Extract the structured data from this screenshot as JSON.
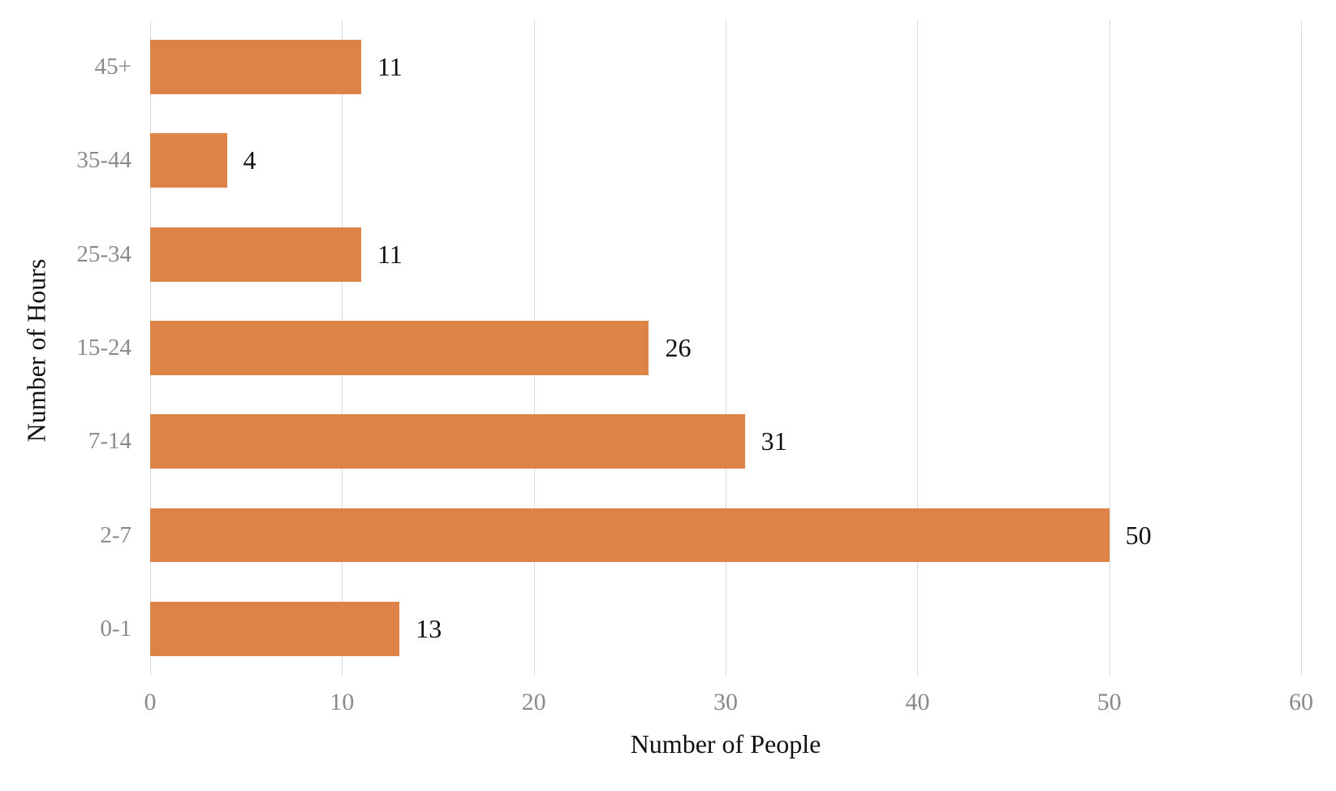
{
  "chart_data": {
    "type": "bar",
    "orientation": "horizontal",
    "categories": [
      "45+",
      "35-44",
      "25-34",
      "15-24",
      "7-14",
      "2-7",
      "0-1"
    ],
    "values": [
      11,
      4,
      11,
      26,
      31,
      50,
      13
    ],
    "data_labels": [
      "11",
      "4",
      "11",
      "26",
      "31",
      "50",
      "13"
    ],
    "xlabel": "Number of People",
    "ylabel": "Number of Hours",
    "xlim": [
      0,
      60
    ],
    "xticks": [
      0,
      10,
      20,
      30,
      40,
      50,
      60
    ],
    "grid": "vertical-only",
    "legend": "none",
    "title": ""
  },
  "colors": {
    "bar": "#de8347",
    "gridline": "#d9d9d9",
    "tick_label": "#8a8a8a",
    "category_label": "#8a8a8a",
    "data_label": "#111111",
    "axis_title": "#111111",
    "background": "#ffffff"
  }
}
